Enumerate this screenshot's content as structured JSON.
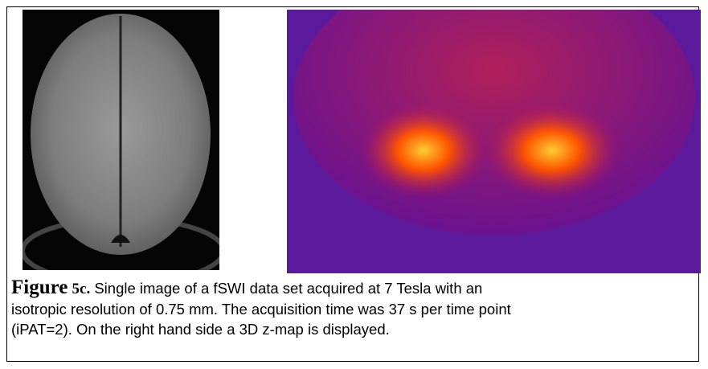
{
  "figure": {
    "label_word": "Figure",
    "label_number": "5c.",
    "caption_lines": [
      "Single image of a fSWI data set acquired at 7 Tesla with an",
      "isotropic resolution of 0.75 mm. The acquisition time was 37 s per time point",
      "(iPAT=2). On the right hand side a 3D z-map is displayed."
    ]
  }
}
